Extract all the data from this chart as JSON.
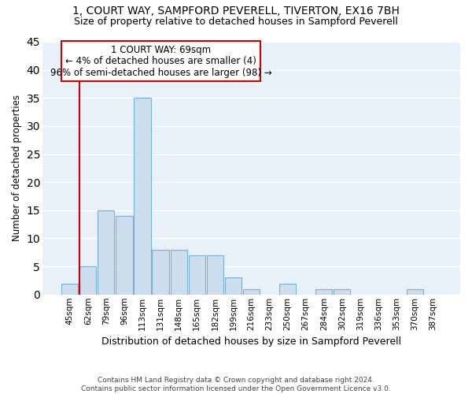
{
  "title1": "1, COURT WAY, SAMPFORD PEVERELL, TIVERTON, EX16 7BH",
  "title2": "Size of property relative to detached houses in Sampford Peverell",
  "xlabel": "Distribution of detached houses by size in Sampford Peverell",
  "ylabel": "Number of detached properties",
  "footnote": "Contains HM Land Registry data © Crown copyright and database right 2024.\nContains public sector information licensed under the Open Government Licence v3.0.",
  "bins": [
    "45sqm",
    "62sqm",
    "79sqm",
    "96sqm",
    "113sqm",
    "131sqm",
    "148sqm",
    "165sqm",
    "182sqm",
    "199sqm",
    "216sqm",
    "233sqm",
    "250sqm",
    "267sqm",
    "284sqm",
    "302sqm",
    "319sqm",
    "336sqm",
    "353sqm",
    "370sqm",
    "387sqm"
  ],
  "values": [
    2,
    5,
    15,
    14,
    35,
    8,
    8,
    7,
    7,
    3,
    1,
    0,
    2,
    0,
    1,
    1,
    0,
    0,
    0,
    1,
    0
  ],
  "bar_color": "#ccdded",
  "bar_edge_color": "#7bafd4",
  "bg_color": "#e8f0f8",
  "grid_color": "#ffffff",
  "annotation_text_line1": "1 COURT WAY: 69sqm",
  "annotation_text_line2": "← 4% of detached houses are smaller (4)",
  "annotation_text_line3": "96% of semi-detached houses are larger (98) →",
  "vline_color": "#cc0000",
  "ylim": [
    0,
    45
  ],
  "yticks": [
    0,
    5,
    10,
    15,
    20,
    25,
    30,
    35,
    40,
    45
  ]
}
